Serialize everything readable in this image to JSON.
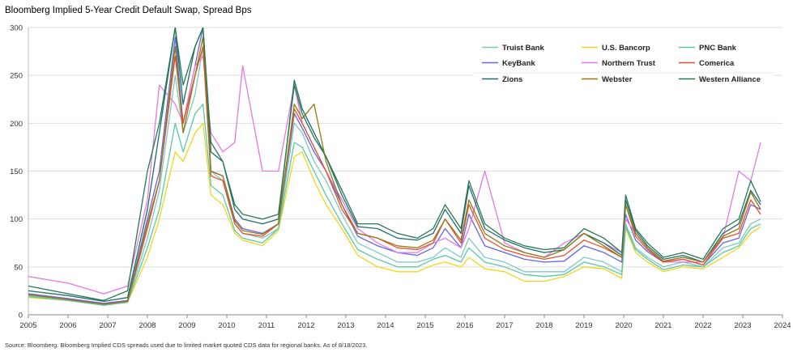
{
  "title": "Bloomberg Implied 5-Year Credit Default Swap, Spread Bps",
  "source": "Source: Bloomberg. Bloomberg Implied CDS spreads used due to limited market quoted CDS data for regional banks. As of 8/18/2023.",
  "chart_data": {
    "type": "line",
    "title": "Bloomberg Implied 5-Year Credit Default Swap, Spread Bps",
    "xlabel": "",
    "ylabel": "",
    "xlim": [
      2005,
      2024
    ],
    "ylim": [
      0,
      300
    ],
    "yticks": [
      0,
      50,
      100,
      150,
      200,
      250,
      300
    ],
    "xticks": [
      2005,
      2006,
      2007,
      2008,
      2009,
      2010,
      2011,
      2012,
      2013,
      2014,
      2015,
      2016,
      2017,
      2018,
      2019,
      2020,
      2021,
      2022,
      2023,
      2024
    ],
    "grid": "horizontal",
    "legend_position": "top-right",
    "x": [
      2005.0,
      2006.0,
      2006.9,
      2007.5,
      2008.0,
      2008.3,
      2008.7,
      2008.9,
      2009.2,
      2009.4,
      2009.6,
      2009.9,
      2010.2,
      2010.4,
      2010.9,
      2011.3,
      2011.7,
      2011.9,
      2012.2,
      2012.5,
      2012.9,
      2013.3,
      2013.8,
      2014.3,
      2014.8,
      2015.2,
      2015.5,
      2015.9,
      2016.1,
      2016.5,
      2017.0,
      2017.5,
      2018.0,
      2018.5,
      2019.0,
      2019.5,
      2019.95,
      2020.05,
      2020.3,
      2020.6,
      2021.0,
      2021.5,
      2022.0,
      2022.5,
      2022.9,
      2023.2,
      2023.45
    ],
    "series": [
      {
        "name": "Truist Bank",
        "color": "#7dc8c2",
        "values": [
          20,
          16,
          11,
          14,
          80,
          130,
          250,
          190,
          230,
          280,
          150,
          140,
          95,
          85,
          80,
          90,
          200,
          190,
          160,
          140,
          105,
          75,
          65,
          55,
          55,
          60,
          70,
          60,
          80,
          60,
          55,
          45,
          45,
          45,
          60,
          55,
          45,
          95,
          70,
          60,
          50,
          55,
          50,
          70,
          75,
          95,
          100
        ]
      },
      {
        "name": "U.S. Bancorp",
        "color": "#f2d61c",
        "values": [
          18,
          15,
          10,
          13,
          60,
          100,
          170,
          160,
          190,
          200,
          125,
          115,
          85,
          78,
          72,
          88,
          165,
          170,
          140,
          115,
          90,
          62,
          50,
          45,
          45,
          52,
          55,
          50,
          60,
          48,
          45,
          35,
          35,
          40,
          50,
          48,
          38,
          90,
          65,
          55,
          45,
          50,
          48,
          60,
          70,
          85,
          92
        ]
      },
      {
        "name": "PNC Bank",
        "color": "#5ac8a8",
        "values": [
          19,
          15,
          10,
          13,
          70,
          110,
          200,
          170,
          210,
          220,
          135,
          125,
          88,
          80,
          75,
          90,
          180,
          175,
          150,
          125,
          95,
          68,
          58,
          50,
          50,
          58,
          62,
          55,
          70,
          55,
          50,
          42,
          40,
          42,
          55,
          50,
          42,
          92,
          68,
          58,
          47,
          52,
          50,
          65,
          72,
          90,
          95
        ]
      },
      {
        "name": "KeyBank",
        "color": "#6464e6",
        "values": [
          22,
          17,
          12,
          15,
          100,
          150,
          290,
          200,
          260,
          300,
          150,
          145,
          100,
          90,
          85,
          95,
          210,
          195,
          170,
          150,
          115,
          82,
          72,
          65,
          62,
          70,
          90,
          70,
          105,
          72,
          65,
          58,
          55,
          56,
          72,
          65,
          55,
          105,
          78,
          66,
          55,
          58,
          52,
          75,
          80,
          115,
          110
        ]
      },
      {
        "name": "Northern Trust",
        "color": "#e678e6",
        "values": [
          40,
          33,
          22,
          30,
          120,
          240,
          220,
          200,
          260,
          270,
          190,
          170,
          180,
          260,
          150,
          150,
          240,
          200,
          175,
          150,
          120,
          90,
          75,
          65,
          65,
          75,
          80,
          70,
          90,
          150,
          75,
          65,
          60,
          75,
          85,
          75,
          65,
          100,
          85,
          70,
          55,
          55,
          55,
          80,
          150,
          140,
          180
        ]
      },
      {
        "name": "Comerica",
        "color": "#e6502d",
        "values": [
          21,
          16,
          11,
          14,
          90,
          140,
          270,
          200,
          250,
          280,
          145,
          140,
          95,
          85,
          82,
          95,
          215,
          200,
          175,
          150,
          110,
          85,
          80,
          70,
          68,
          75,
          100,
          75,
          115,
          80,
          68,
          62,
          58,
          62,
          78,
          70,
          60,
          115,
          82,
          68,
          55,
          58,
          52,
          80,
          85,
          120,
          105
        ]
      },
      {
        "name": "Zions",
        "color": "#1e6e6e",
        "values": [
          25,
          20,
          14,
          18,
          110,
          190,
          300,
          220,
          280,
          300,
          170,
          160,
          110,
          100,
          95,
          100,
          245,
          215,
          190,
          165,
          125,
          92,
          90,
          80,
          78,
          85,
          110,
          85,
          135,
          90,
          78,
          70,
          65,
          68,
          85,
          75,
          62,
          120,
          88,
          72,
          58,
          62,
          55,
          85,
          95,
          130,
          115
        ]
      },
      {
        "name": "Webster",
        "color": "#967814",
        "values": [
          21,
          16,
          11,
          14,
          95,
          140,
          280,
          190,
          250,
          290,
          150,
          145,
          98,
          88,
          84,
          95,
          220,
          205,
          220,
          160,
          115,
          85,
          80,
          72,
          70,
          78,
          100,
          78,
          120,
          85,
          72,
          65,
          60,
          68,
          85,
          72,
          60,
          115,
          85,
          70,
          56,
          60,
          55,
          82,
          90,
          128,
          110
        ]
      },
      {
        "name": "Western Alliance",
        "color": "#287850",
        "values": [
          30,
          22,
          15,
          25,
          150,
          200,
          300,
          240,
          280,
          300,
          180,
          160,
          115,
          105,
          100,
          105,
          240,
          210,
          185,
          165,
          130,
          95,
          95,
          85,
          80,
          90,
          115,
          90,
          140,
          95,
          80,
          72,
          68,
          70,
          90,
          80,
          65,
          125,
          90,
          75,
          60,
          65,
          58,
          90,
          100,
          140,
          118
        ]
      }
    ]
  }
}
